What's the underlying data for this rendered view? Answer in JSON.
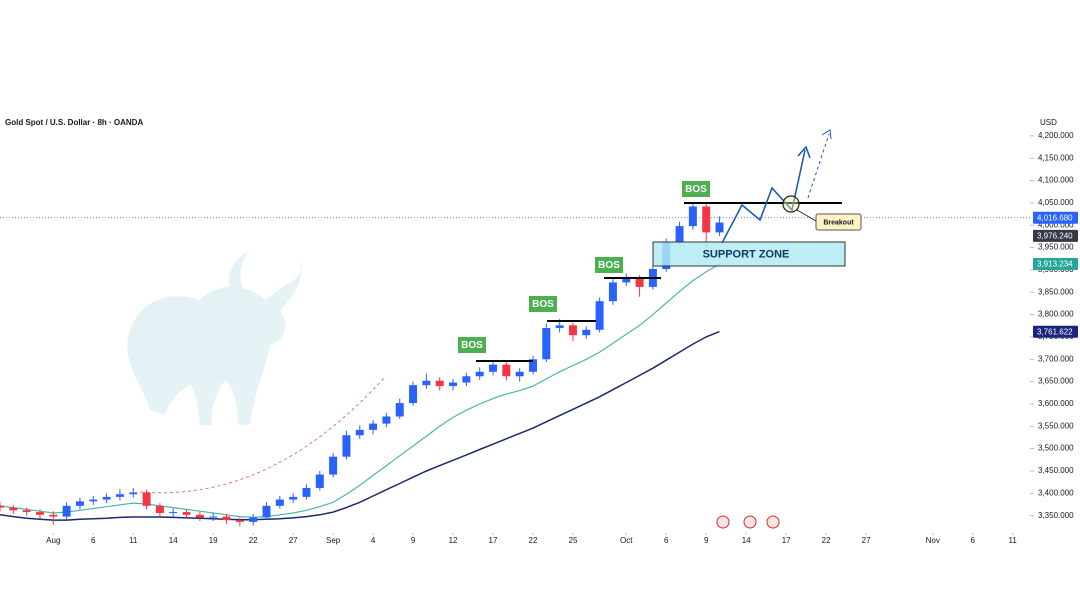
{
  "chart_data": {
    "type": "candlestick",
    "title": "Gold Spot / U.S. Dollar · 8h · OANDA",
    "currency": "USD",
    "up_color": "#2962ff",
    "down_color": "#f23645",
    "grid": false,
    "x": [
      -4,
      -3,
      -2,
      -1,
      0,
      1,
      2,
      3,
      4,
      5,
      6,
      7,
      8,
      9,
      10,
      11,
      12,
      13,
      14,
      15,
      16,
      17,
      18,
      19,
      20,
      21,
      22,
      23,
      24,
      25,
      26,
      27,
      28,
      29,
      30,
      31,
      32,
      33,
      34,
      35,
      36,
      37,
      38,
      39,
      40,
      41,
      42,
      43,
      44,
      45,
      46,
      47,
      48,
      49,
      50
    ],
    "open": [
      3372,
      3368,
      3362,
      3358,
      3352,
      3348,
      3372,
      3382,
      3386,
      3392,
      3398,
      3402,
      3372,
      3356,
      3358,
      3352,
      3346,
      3348,
      3340,
      3336,
      3346,
      3372,
      3386,
      3392,
      3412,
      3442,
      3482,
      3530,
      3542,
      3556,
      3572,
      3602,
      3642,
      3652,
      3640,
      3648,
      3662,
      3672,
      3688,
      3662,
      3672,
      3700,
      3770,
      3776,
      3754,
      3766,
      3830,
      3872,
      3880,
      3862,
      3902,
      3962,
      3998,
      4042,
      3984
    ],
    "high": [
      3380,
      3374,
      3368,
      3364,
      3360,
      3380,
      3390,
      3394,
      3400,
      3410,
      3412,
      3408,
      3378,
      3366,
      3364,
      3358,
      3356,
      3354,
      3346,
      3354,
      3380,
      3394,
      3400,
      3420,
      3450,
      3490,
      3540,
      3552,
      3564,
      3580,
      3612,
      3650,
      3668,
      3660,
      3656,
      3670,
      3682,
      3696,
      3694,
      3680,
      3708,
      3780,
      3790,
      3782,
      3774,
      3838,
      3880,
      3892,
      3888,
      3910,
      3970,
      4008,
      4052,
      4050,
      4020
    ],
    "low": [
      3360,
      3354,
      3350,
      3344,
      3330,
      3340,
      3364,
      3374,
      3378,
      3384,
      3390,
      3364,
      3348,
      3348,
      3344,
      3338,
      3338,
      3332,
      3326,
      3328,
      3340,
      3366,
      3378,
      3386,
      3406,
      3436,
      3476,
      3522,
      3532,
      3548,
      3566,
      3596,
      3634,
      3630,
      3630,
      3640,
      3654,
      3664,
      3652,
      3650,
      3666,
      3694,
      3760,
      3740,
      3746,
      3760,
      3822,
      3864,
      3840,
      3856,
      3896,
      3956,
      3990,
      3950,
      3976
    ],
    "close": [
      3368,
      3362,
      3358,
      3352,
      3348,
      3372,
      3382,
      3386,
      3392,
      3398,
      3402,
      3372,
      3356,
      3358,
      3352,
      3346,
      3348,
      3340,
      3336,
      3346,
      3372,
      3386,
      3392,
      3412,
      3442,
      3482,
      3530,
      3542,
      3556,
      3572,
      3602,
      3642,
      3652,
      3640,
      3648,
      3662,
      3672,
      3688,
      3662,
      3672,
      3700,
      3770,
      3776,
      3754,
      3766,
      3830,
      3872,
      3880,
      3862,
      3902,
      3962,
      3998,
      4042,
      3984,
      4006
    ],
    "moving_averages": [
      {
        "color": "#4db6ac",
        "values": [
          3372,
          3368,
          3364,
          3360,
          3356,
          3358,
          3362,
          3366,
          3370,
          3374,
          3378,
          3376,
          3372,
          3368,
          3364,
          3360,
          3356,
          3352,
          3348,
          3346,
          3348,
          3352,
          3356,
          3362,
          3370,
          3380,
          3398,
          3418,
          3440,
          3462,
          3484,
          3506,
          3528,
          3550,
          3570,
          3586,
          3600,
          3612,
          3622,
          3630,
          3640,
          3656,
          3672,
          3686,
          3700,
          3716,
          3736,
          3756,
          3776,
          3800,
          3826,
          3852,
          3876,
          3896,
          3913
        ]
      },
      {
        "color": "#1a2a6c",
        "values": [
          3352,
          3348,
          3344,
          3342,
          3340,
          3340,
          3342,
          3343,
          3344,
          3346,
          3347,
          3347,
          3347,
          3346,
          3345,
          3344,
          3343,
          3342,
          3341,
          3341,
          3342,
          3343,
          3345,
          3348,
          3352,
          3358,
          3368,
          3380,
          3394,
          3408,
          3422,
          3436,
          3450,
          3462,
          3474,
          3486,
          3498,
          3510,
          3522,
          3534,
          3546,
          3560,
          3574,
          3588,
          3602,
          3616,
          3632,
          3648,
          3664,
          3680,
          3698,
          3716,
          3734,
          3750,
          3762
        ]
      }
    ],
    "xlim": [
      -4,
      73.3
    ],
    "xticks": [
      {
        "value": 0,
        "label": "Aug"
      },
      {
        "value": 3,
        "label": "6"
      },
      {
        "value": 6,
        "label": "11"
      },
      {
        "value": 9,
        "label": "14"
      },
      {
        "value": 12,
        "label": "19"
      },
      {
        "value": 15,
        "label": "22"
      },
      {
        "value": 18,
        "label": "27"
      },
      {
        "value": 21,
        "label": "Sep"
      },
      {
        "value": 24,
        "label": "4"
      },
      {
        "value": 27,
        "label": "9"
      },
      {
        "value": 30,
        "label": "12"
      },
      {
        "value": 33,
        "label": "17"
      },
      {
        "value": 36,
        "label": "22"
      },
      {
        "value": 39,
        "label": "25"
      },
      {
        "value": 43,
        "label": "Oct"
      },
      {
        "value": 46,
        "label": "6"
      },
      {
        "value": 49,
        "label": "9"
      },
      {
        "value": 52,
        "label": "14"
      },
      {
        "value": 55,
        "label": "17"
      },
      {
        "value": 58,
        "label": "22"
      },
      {
        "value": 61,
        "label": "27"
      },
      {
        "value": 66,
        "label": "Nov"
      },
      {
        "value": 69,
        "label": "6"
      },
      {
        "value": 72,
        "label": "11"
      }
    ],
    "ylim": [
      3300,
      4240
    ],
    "yticks": [
      {
        "value": 3350,
        "label": "3,350.000"
      },
      {
        "value": 3400,
        "label": "3,400.000"
      },
      {
        "value": 3450,
        "label": "3,450.000"
      },
      {
        "value": 3500,
        "label": "3,500.000"
      },
      {
        "value": 3550,
        "label": "3,550.000"
      },
      {
        "value": 3600,
        "label": "3,600.000"
      },
      {
        "value": 3650,
        "label": "3,650.000"
      },
      {
        "value": 3700,
        "label": "3,700.000"
      },
      {
        "value": 3750,
        "label": "3,750.000"
      },
      {
        "value": 3800,
        "label": "3,800.000"
      },
      {
        "value": 3850,
        "label": "3,850.000"
      },
      {
        "value": 3900,
        "label": "3,900.000"
      },
      {
        "value": 3950,
        "label": "3,950.000"
      },
      {
        "value": 4000,
        "label": "4,000.000"
      },
      {
        "value": 4050,
        "label": "4,050.000"
      },
      {
        "value": 4100,
        "label": "4,100.000"
      },
      {
        "value": 4150,
        "label": "4,150.000"
      },
      {
        "value": 4200,
        "label": "4,200.000"
      }
    ],
    "price_tags": [
      {
        "value": 4016.68,
        "label": "4,016.680",
        "color": "#2962ff",
        "line": true
      },
      {
        "value": 3976.24,
        "label": "3,976.240",
        "color": "#363a45",
        "line": false
      },
      {
        "value": 3913.234,
        "label": "3,913.234",
        "color": "#26a69a",
        "line": false
      },
      {
        "value": 3761.622,
        "label": "3,761.622",
        "color": "#1a237e",
        "line": false
      }
    ],
    "annotations": {
      "bos": [
        "BOS",
        "BOS",
        "BOS",
        "BOS"
      ],
      "support_zone": "SUPPORT ZONE",
      "breakout": "Breakout"
    }
  }
}
